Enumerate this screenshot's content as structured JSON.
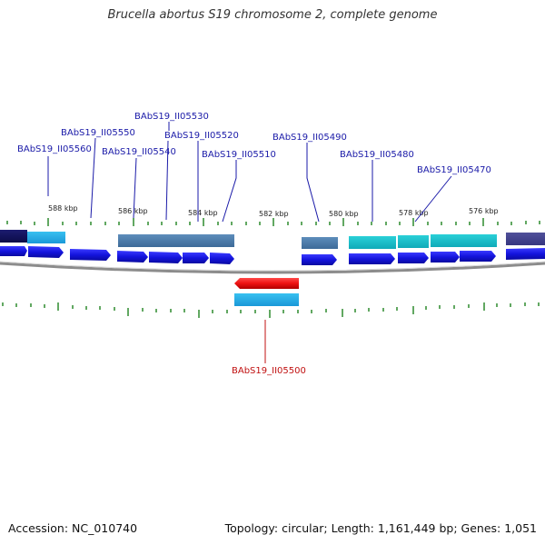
{
  "title": "Brucella abortus S19 chromosome 2, complete genome",
  "footer": {
    "accession": "Accession: NC_010740",
    "summary": "Topology: circular; Length: 1,161,449 bp; Genes: 1,051"
  },
  "ruler": {
    "ticks": [
      "588 kbp",
      "586 kbp",
      "584 kbp",
      "582 kbp",
      "580 kbp",
      "578 kbp",
      "576 kbp"
    ]
  },
  "gene_labels": {
    "g5530": "BAbS19_II05530",
    "g5550": "BAbS19_II05550",
    "g5520": "BAbS19_II05520",
    "g5490": "BAbS19_II05490",
    "g5560": "BAbS19_II05560",
    "g5540": "BAbS19_II05540",
    "g5510": "BAbS19_II05510",
    "g5480": "BAbS19_II05480",
    "g5470": "BAbS19_II05470",
    "g5500": "BAbS19_II05500"
  },
  "colors": {
    "forward_gene": "#1414dd",
    "reverse_gene": "#ee1111",
    "label_blue": "#1a1aa8",
    "label_red": "#c01010",
    "tick_green": "#2e8b2e",
    "backbone": "#8c8c8c"
  }
}
